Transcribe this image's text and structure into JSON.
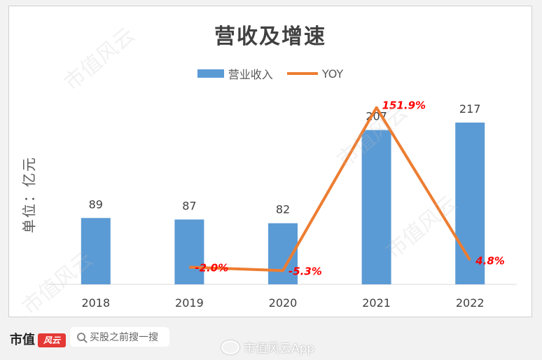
{
  "chart_data": {
    "type": "bar",
    "title": "营收及增速",
    "ylabel": "单位：亿元",
    "categories": [
      "2018",
      "2019",
      "2020",
      "2021",
      "2022"
    ],
    "series": [
      {
        "name": "营业收入",
        "type": "bar",
        "color": "#5b9bd5",
        "values": [
          89,
          87,
          82,
          207,
          217
        ]
      },
      {
        "name": "YOY",
        "type": "line",
        "color": "#ed7d31",
        "values": [
          null,
          -2.0,
          -5.3,
          151.9,
          4.8
        ],
        "labels": [
          "",
          "-2.0%",
          "-5.3%",
          "151.9%",
          "4.8%"
        ]
      }
    ],
    "legend": "top-center",
    "grid": false
  },
  "footer": {
    "brand": "市值",
    "brand_logo": "风云",
    "search_placeholder": "买股之前搜一搜",
    "weibo_text": "市值风云App"
  },
  "watermark": "市值风云"
}
